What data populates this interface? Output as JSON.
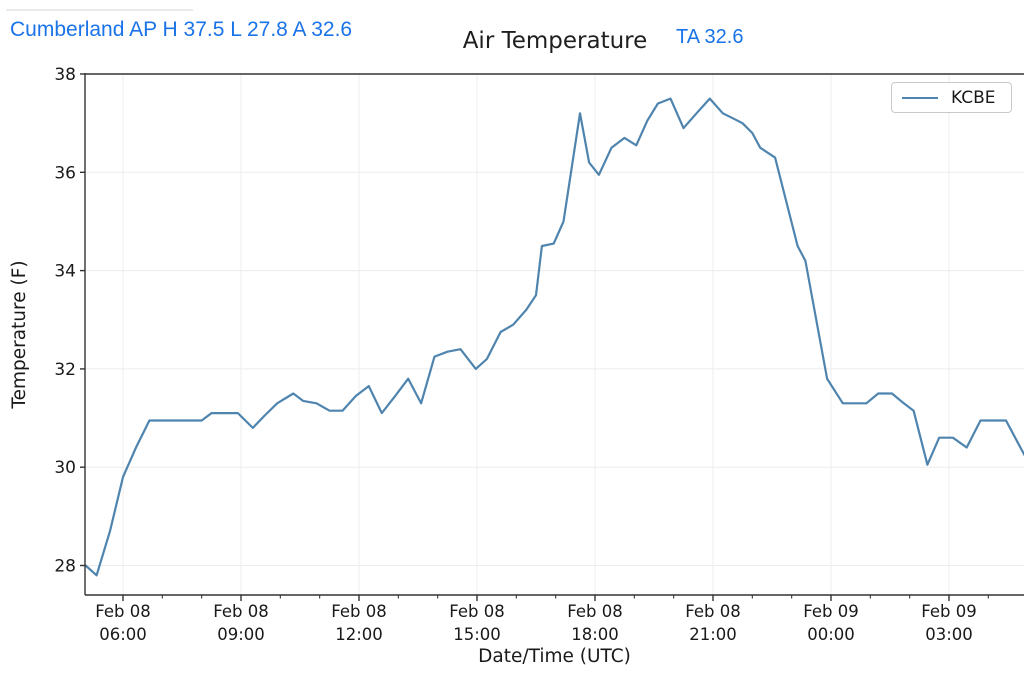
{
  "page": {
    "header_summary": "Cumberland AP H 37.5 L 27.8 A 32.6",
    "ta_label": "TA 32.6"
  },
  "colors": {
    "header_text": "#1a73e8",
    "line": "#4e84ae",
    "grid": "#ececec",
    "axis": "#333333",
    "text": "#1a1a1a",
    "legend_border": "#c9c9c9"
  },
  "chart_data": {
    "type": "line",
    "title": "Air Temperature",
    "xlabel": "Date/Time (UTC)",
    "ylabel": "Temperature (F)",
    "station": "Cumberland AP",
    "stats": {
      "high": 37.5,
      "low": 27.8,
      "average": 32.6,
      "current_ta": 32.6
    },
    "legend": {
      "position": "upper-right",
      "entries": [
        "KCBE"
      ]
    },
    "grid": true,
    "ylim": [
      27.4,
      38.0
    ],
    "yticks": [
      28,
      30,
      32,
      34,
      36,
      38
    ],
    "x_axis_unit": "hours_from_Feb08_0000_UTC",
    "xlim": [
      5.03,
      28.91
    ],
    "minor_xtick_every_hours": 1,
    "xticks": [
      {
        "hour": 6,
        "line1": "Feb 08",
        "line2": "06:00"
      },
      {
        "hour": 9,
        "line1": "Feb 08",
        "line2": "09:00"
      },
      {
        "hour": 12,
        "line1": "Feb 08",
        "line2": "12:00"
      },
      {
        "hour": 15,
        "line1": "Feb 08",
        "line2": "15:00"
      },
      {
        "hour": 18,
        "line1": "Feb 08",
        "line2": "18:00"
      },
      {
        "hour": 21,
        "line1": "Feb 08",
        "line2": "21:00"
      },
      {
        "hour": 24,
        "line1": "Feb 09",
        "line2": "00:00"
      },
      {
        "hour": 27,
        "line1": "Feb 09",
        "line2": "03:00"
      }
    ],
    "series": [
      {
        "name": "KCBE",
        "color": "#4e84ae",
        "points_hour_tempF": [
          [
            5.05,
            28.0
          ],
          [
            5.33,
            27.8
          ],
          [
            5.67,
            28.7
          ],
          [
            6.0,
            29.8
          ],
          [
            6.33,
            30.4
          ],
          [
            6.67,
            30.95
          ],
          [
            7.0,
            30.95
          ],
          [
            7.33,
            30.95
          ],
          [
            7.67,
            30.95
          ],
          [
            8.0,
            30.95
          ],
          [
            8.25,
            31.1
          ],
          [
            8.58,
            31.1
          ],
          [
            8.92,
            31.1
          ],
          [
            9.3,
            30.8
          ],
          [
            9.6,
            31.05
          ],
          [
            9.92,
            31.3
          ],
          [
            10.33,
            31.5
          ],
          [
            10.58,
            31.35
          ],
          [
            10.92,
            31.3
          ],
          [
            11.25,
            31.15
          ],
          [
            11.58,
            31.15
          ],
          [
            11.92,
            31.45
          ],
          [
            12.25,
            31.65
          ],
          [
            12.58,
            31.1
          ],
          [
            12.92,
            31.45
          ],
          [
            13.25,
            31.8
          ],
          [
            13.58,
            31.3
          ],
          [
            13.92,
            32.25
          ],
          [
            14.25,
            32.35
          ],
          [
            14.58,
            32.4
          ],
          [
            14.97,
            32.0
          ],
          [
            15.25,
            32.2
          ],
          [
            15.6,
            32.75
          ],
          [
            15.92,
            32.9
          ],
          [
            16.25,
            33.2
          ],
          [
            16.5,
            33.5
          ],
          [
            16.65,
            34.5
          ],
          [
            16.95,
            34.55
          ],
          [
            17.2,
            35.0
          ],
          [
            17.62,
            37.2
          ],
          [
            17.85,
            36.2
          ],
          [
            18.1,
            35.95
          ],
          [
            18.42,
            36.5
          ],
          [
            18.75,
            36.7
          ],
          [
            19.05,
            36.55
          ],
          [
            19.33,
            37.05
          ],
          [
            19.6,
            37.4
          ],
          [
            19.92,
            37.5
          ],
          [
            20.25,
            36.9
          ],
          [
            20.58,
            37.2
          ],
          [
            20.92,
            37.5
          ],
          [
            21.25,
            37.2
          ],
          [
            21.5,
            37.1
          ],
          [
            21.75,
            37.0
          ],
          [
            22.0,
            36.8
          ],
          [
            22.2,
            36.5
          ],
          [
            22.58,
            36.3
          ],
          [
            23.15,
            34.5
          ],
          [
            23.35,
            34.2
          ],
          [
            23.9,
            31.8
          ],
          [
            24.3,
            31.3
          ],
          [
            24.6,
            31.3
          ],
          [
            24.9,
            31.3
          ],
          [
            25.2,
            31.5
          ],
          [
            25.55,
            31.5
          ],
          [
            25.85,
            31.3
          ],
          [
            26.1,
            31.15
          ],
          [
            26.45,
            30.05
          ],
          [
            26.75,
            30.6
          ],
          [
            27.1,
            30.6
          ],
          [
            27.45,
            30.4
          ],
          [
            27.8,
            30.95
          ],
          [
            28.1,
            30.95
          ],
          [
            28.45,
            30.95
          ],
          [
            28.95,
            30.2
          ]
        ]
      }
    ]
  }
}
